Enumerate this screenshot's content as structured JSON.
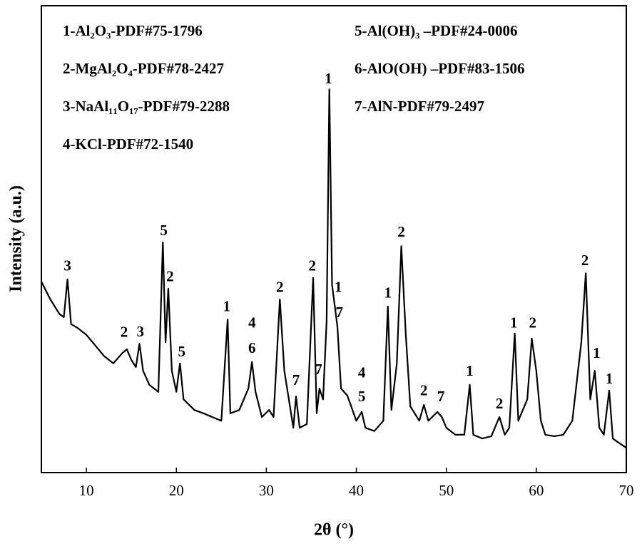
{
  "chart_data": {
    "type": "line",
    "xlabel": "2θ (°)",
    "ylabel": "Intensity (a.u.)",
    "legend_text": [
      "1-Al₂O₃-PDF#75-1796",
      "2-MgAl₂O₄-PDF#78-2427",
      "3-NaAl₁₁O₁₇-PDF#79-2288",
      "4-KCl-PDF#72-1540",
      "5-Al(OH)₃ –PDF#24-0006",
      "6-AlO(OH) –PDF#83-1506",
      "7-AlN-PDF#79-2497"
    ],
    "xlim": [
      5,
      70
    ],
    "xticks": [
      10,
      20,
      30,
      40,
      50,
      60,
      70
    ],
    "ylim": [
      0,
      100
    ],
    "x": [
      5,
      6,
      7,
      7.5,
      7.9,
      8.3,
      9,
      10,
      11,
      12,
      13,
      14,
      14.5,
      15,
      15.5,
      15.9,
      16.3,
      17,
      18,
      18.5,
      18.8,
      19.1,
      19.5,
      20,
      20.4,
      20.8,
      22,
      23,
      24,
      25,
      25.7,
      26,
      27,
      28,
      28.4,
      28.8,
      29.5,
      30.3,
      30.8,
      31.5,
      32,
      33,
      33.3,
      33.7,
      34.5,
      35.2,
      35.6,
      35.9,
      36.3,
      36.7,
      37,
      37.3,
      37.9,
      38.3,
      39,
      40,
      40.6,
      41,
      42,
      43,
      43.5,
      43.9,
      44.5,
      45,
      45.5,
      46,
      47,
      47.5,
      48,
      49,
      49.5,
      50,
      51,
      52,
      52.6,
      53,
      54,
      55,
      55.9,
      56.5,
      57,
      57.6,
      58,
      59,
      59.5,
      60,
      60.5,
      61,
      62,
      63,
      64,
      65,
      65.5,
      66,
      66.5,
      67,
      67.5,
      68.1,
      68.5,
      69,
      70
    ],
    "series": [
      {
        "color": "#000000",
        "values": [
          40.9,
          37.1,
          34.0,
          33.3,
          41.4,
          31.8,
          31.0,
          29.5,
          27.2,
          24.9,
          23.4,
          25.6,
          26.4,
          24.1,
          22.6,
          27.6,
          21.8,
          18.8,
          17.3,
          49.3,
          27.9,
          39.4,
          21.8,
          17.3,
          23.4,
          15.7,
          13.4,
          12.7,
          11.9,
          11.1,
          32.8,
          12.7,
          13.4,
          18.0,
          23.7,
          17.3,
          11.9,
          13.4,
          11.9,
          37.1,
          21.8,
          9.6,
          16.3,
          9.6,
          10.4,
          41.7,
          12.7,
          18.0,
          15.7,
          32.5,
          82.1,
          40.2,
          31.3,
          18.0,
          16.5,
          11.1,
          13.0,
          9.6,
          8.9,
          11.1,
          35.6,
          13.4,
          23.4,
          48.5,
          29.5,
          14.2,
          11.1,
          14.5,
          11.1,
          13.0,
          11.9,
          9.6,
          8.1,
          8.1,
          18.8,
          8.1,
          7.3,
          7.8,
          11.9,
          8.1,
          9.6,
          29.8,
          11.1,
          15.7,
          28.7,
          21.8,
          11.1,
          8.1,
          7.8,
          8.1,
          11.1,
          27.9,
          42.7,
          15.7,
          21.8,
          9.6,
          8.1,
          17.6,
          7.3,
          6.6,
          5.3
        ]
      }
    ],
    "annotations": [
      {
        "x": 7.9,
        "y": 44.0,
        "text": "3"
      },
      {
        "x": 14.2,
        "y": 29.8,
        "text": "2"
      },
      {
        "x": 16.0,
        "y": 29.9,
        "text": "3"
      },
      {
        "x": 18.6,
        "y": 51.6,
        "text": "5"
      },
      {
        "x": 19.3,
        "y": 41.7,
        "text": "2"
      },
      {
        "x": 20.6,
        "y": 25.6,
        "text": "5"
      },
      {
        "x": 25.6,
        "y": 35.3,
        "text": "1"
      },
      {
        "x": 28.4,
        "y": 31.8,
        "text": "4"
      },
      {
        "x": 28.4,
        "y": 26.4,
        "text": "6"
      },
      {
        "x": 31.5,
        "y": 39.4,
        "text": "2"
      },
      {
        "x": 33.3,
        "y": 19.5,
        "text": "7"
      },
      {
        "x": 35.8,
        "y": 21.8,
        "text": "7"
      },
      {
        "x": 35.1,
        "y": 44.0,
        "text": "2"
      },
      {
        "x": 36.9,
        "y": 84.1,
        "text": "1"
      },
      {
        "x": 38.0,
        "y": 39.4,
        "text": "1"
      },
      {
        "x": 38.1,
        "y": 34.0,
        "text": "7"
      },
      {
        "x": 40.6,
        "y": 21.1,
        "text": "4"
      },
      {
        "x": 40.6,
        "y": 16.0,
        "text": "5"
      },
      {
        "x": 43.5,
        "y": 38.2,
        "text": "1"
      },
      {
        "x": 45.0,
        "y": 51.3,
        "text": "2"
      },
      {
        "x": 47.5,
        "y": 17.3,
        "text": "2"
      },
      {
        "x": 49.4,
        "y": 16.0,
        "text": "7"
      },
      {
        "x": 52.6,
        "y": 21.5,
        "text": "1"
      },
      {
        "x": 55.9,
        "y": 14.5,
        "text": "2"
      },
      {
        "x": 57.5,
        "y": 31.8,
        "text": "1"
      },
      {
        "x": 59.6,
        "y": 31.8,
        "text": "2"
      },
      {
        "x": 65.4,
        "y": 45.2,
        "text": "2"
      },
      {
        "x": 66.7,
        "y": 25.3,
        "text": "1"
      },
      {
        "x": 68.1,
        "y": 19.8,
        "text": "1"
      }
    ]
  }
}
